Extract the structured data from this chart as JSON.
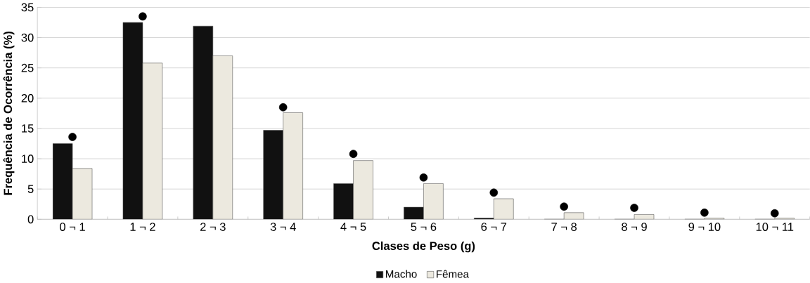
{
  "chart_data": {
    "type": "bar",
    "xlabel": "Clases de Peso (g)",
    "ylabel": "Frequência de Ocorrência (%)",
    "categories": [
      "0 ¬ 1",
      "1 ¬ 2",
      "2 ¬ 3",
      "3 ¬ 4",
      "4 ¬ 5",
      "5 ¬ 6",
      "6 ¬ 7",
      "7 ¬ 8",
      "8 ¬ 9",
      "9 ¬ 10",
      "10 ¬ 11"
    ],
    "series": [
      {
        "name": "Macho",
        "color": "#111111",
        "values": [
          12.5,
          32.5,
          31.9,
          14.7,
          5.9,
          2.0,
          0.2,
          0,
          0,
          0,
          0
        ]
      },
      {
        "name": "Fêmea",
        "color": "#ece9df",
        "values": [
          8.4,
          25.8,
          27.0,
          17.6,
          9.7,
          5.9,
          3.4,
          1.1,
          0.8,
          0.2,
          0.2
        ]
      },
      {
        "type": "scatter",
        "marker": "circle",
        "color": "#000000",
        "x": [
          "0 ¬ 1",
          "1 ¬ 2",
          "3 ¬ 4",
          "4 ¬ 5",
          "5 ¬ 6",
          "6 ¬ 7",
          "7 ¬ 8",
          "8 ¬ 9",
          "9 ¬ 10",
          "10 ¬ 11"
        ],
        "values": [
          13.6,
          33.5,
          18.5,
          10.8,
          6.9,
          4.4,
          2.1,
          1.9,
          1.1,
          1.0
        ]
      }
    ],
    "ylim": [
      0,
      35
    ],
    "yticks": [
      0,
      5,
      10,
      15,
      20,
      25,
      30,
      35
    ],
    "grid": "y",
    "legend": "bottom"
  }
}
